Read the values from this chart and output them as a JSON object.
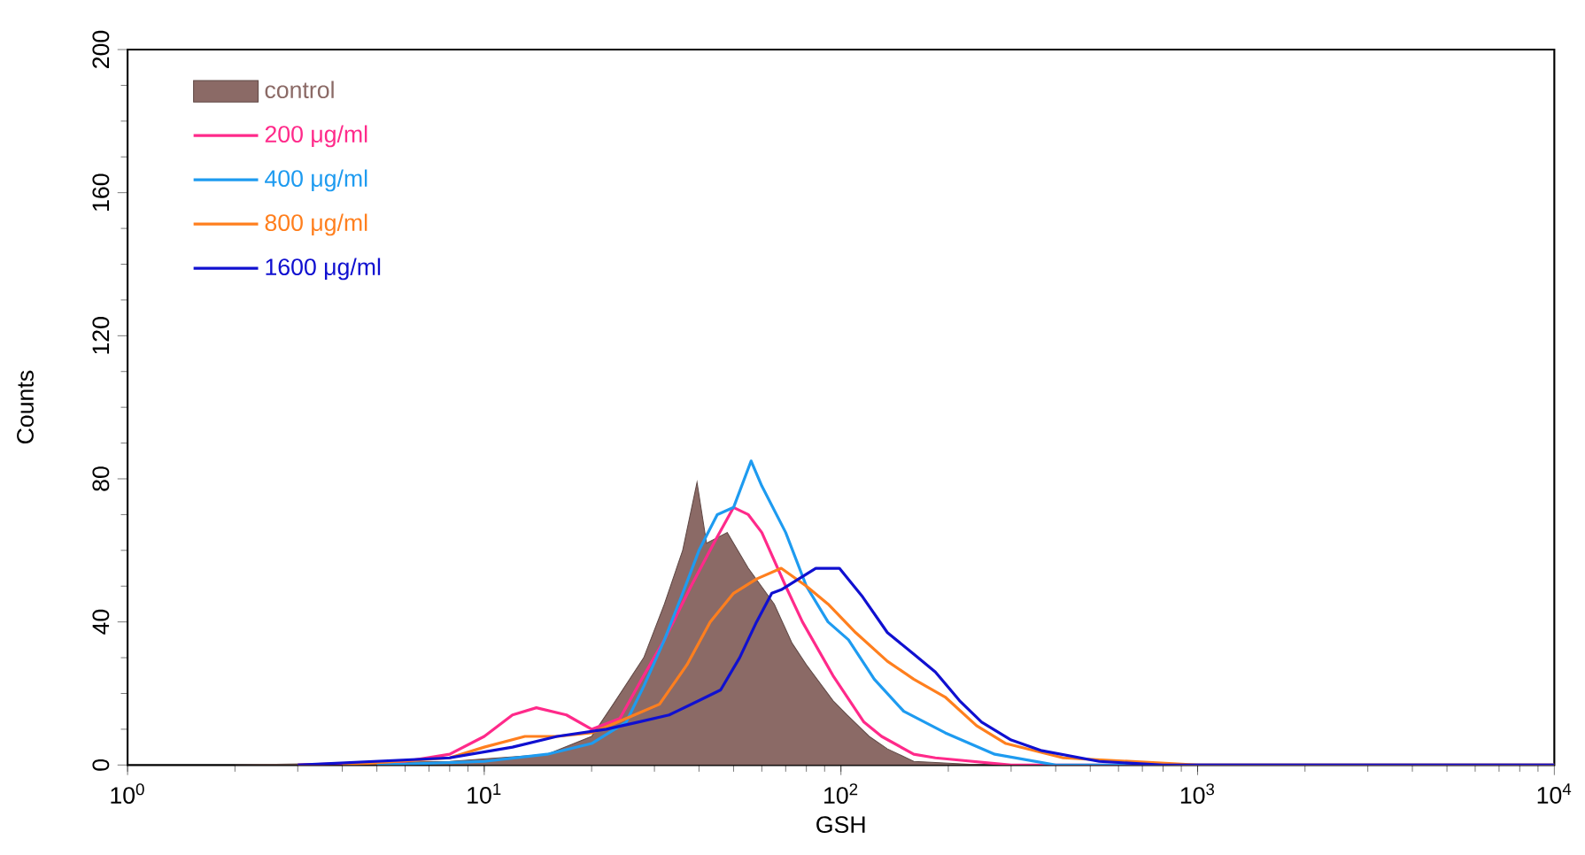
{
  "chart_data": {
    "type": "line",
    "xlabel": "GSH",
    "ylabel": "Counts",
    "log": "x",
    "legend": "top left",
    "grid": false,
    "xlim": [
      1,
      10000
    ],
    "ylim": [
      0,
      200
    ],
    "xticks": [
      {
        "value": 1,
        "label": "10$^{0}$"
      },
      {
        "value": 10,
        "label": "10$^{1}$"
      },
      {
        "value": 100,
        "label": "10$^{2}$"
      },
      {
        "value": 1000,
        "label": "10$^{3}$"
      },
      {
        "value": 10000,
        "label": "10$^{4}$"
      }
    ],
    "yticks": [
      0,
      40,
      80,
      120,
      160,
      200
    ],
    "series": [
      {
        "name": "control",
        "type": "area",
        "color": "#8b6a66",
        "x": [
          2,
          8,
          15,
          20,
          23,
          28,
          32,
          36,
          39.5,
          42,
          48,
          55,
          65,
          73,
          80,
          95,
          104,
          120,
          135,
          160,
          250,
          10000
        ],
        "values": [
          0,
          1,
          3,
          8,
          17,
          30,
          45,
          60,
          79,
          62,
          65,
          55,
          45,
          34,
          28,
          18,
          14,
          8,
          4.5,
          1,
          0,
          0
        ]
      },
      {
        "name": "200 μg/ml",
        "color": "#ff2a8a",
        "x": [
          3,
          6,
          8,
          10,
          12,
          14,
          17,
          20,
          24,
          28,
          32,
          38,
          44,
          50,
          55,
          60,
          70,
          78,
          95,
          116,
          130,
          160,
          184,
          300,
          10000
        ],
        "values": [
          0,
          1,
          3,
          8,
          14,
          16,
          14,
          10,
          13,
          25,
          35,
          50,
          62,
          72,
          70,
          65,
          50,
          40,
          25,
          12,
          8,
          3,
          2,
          0,
          0
        ]
      },
      {
        "name": "400 μg/ml",
        "color": "#1e9bf0",
        "x": [
          5,
          10,
          15,
          20,
          25,
          28,
          32,
          36,
          40,
          45,
          50,
          56,
          60,
          70,
          80,
          92,
          105,
          124,
          150,
          196,
          270,
          400,
          10000
        ],
        "values": [
          0,
          1,
          3,
          6,
          12,
          22,
          35,
          48,
          60,
          70,
          72,
          85,
          78,
          65,
          50,
          40,
          35,
          24,
          15,
          9,
          3,
          0,
          0
        ]
      },
      {
        "name": "800 μg/ml",
        "color": "#ff7f1e",
        "x": [
          4,
          8,
          10,
          13,
          16,
          20,
          25,
          31,
          37,
          43,
          50,
          58,
          68,
          80,
          92,
          110,
          135,
          160,
          196,
          240,
          290,
          420,
          1000,
          10000
        ],
        "values": [
          0,
          2,
          5,
          8,
          8,
          9,
          13,
          17,
          28,
          40,
          48,
          52,
          55,
          50,
          45,
          37,
          29,
          24,
          19,
          11,
          6,
          2,
          0,
          0
        ]
      },
      {
        "name": "1600 μg/ml",
        "color": "#1010d0",
        "x": [
          3,
          8,
          12,
          16,
          22,
          27,
          33,
          40,
          46,
          52,
          58,
          64,
          68,
          85,
          99,
          115,
          135,
          160,
          184,
          215,
          248,
          300,
          366,
          530,
          800,
          10000
        ],
        "values": [
          0,
          2,
          5,
          8,
          10,
          12,
          14,
          18,
          21,
          30,
          40,
          48,
          49,
          55,
          55,
          47,
          37,
          31,
          26,
          18,
          12,
          7,
          4,
          1,
          0,
          0
        ]
      }
    ]
  }
}
